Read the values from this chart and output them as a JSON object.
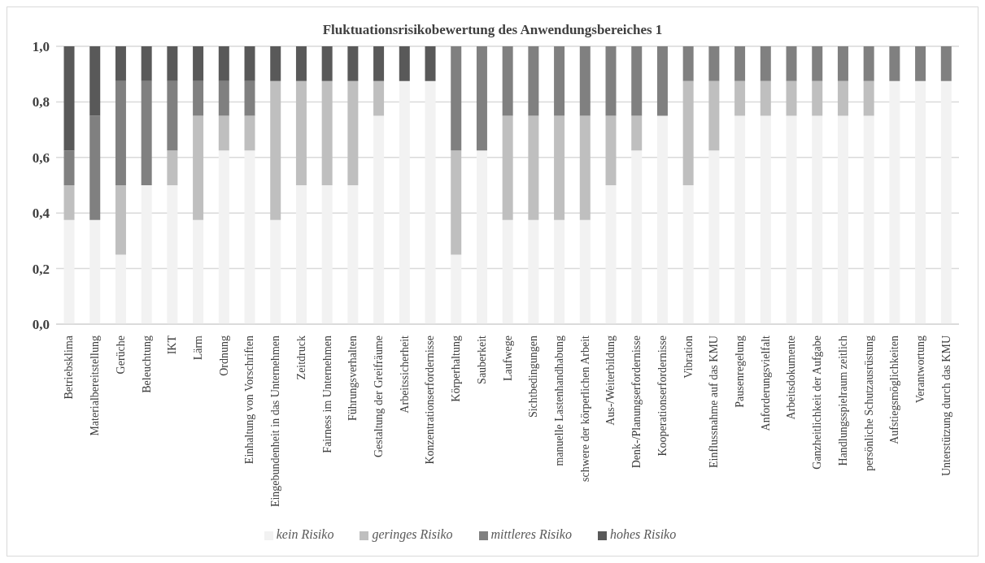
{
  "chart_data": {
    "type": "bar",
    "title": "Fluktuationsrisikobewertung des Anwendungsbereiches 1",
    "stacked": true,
    "grid": "y",
    "legend": "bottom",
    "ylim": [
      0,
      1
    ],
    "yticks": [
      {
        "value": 0,
        "label": "0,0"
      },
      {
        "value": 0.2,
        "label": "0,2"
      },
      {
        "value": 0.4,
        "label": "0,4"
      },
      {
        "value": 0.6,
        "label": "0,6"
      },
      {
        "value": 0.8,
        "label": "0,8"
      },
      {
        "value": 1,
        "label": "1,0"
      }
    ],
    "categories": [
      "Betriebsklima",
      "Materialbereitstellung",
      "Gerüche",
      "Beleuchtung",
      "IKT",
      "Lärm",
      "Ordnung",
      "Einhaltung von Vorschriften",
      "Eingebundenheit in das Unternehmen",
      "Zeitdruck",
      "Fairness im Unternehmen",
      "Führungsverhalten",
      "Gestaltung der Greifräume",
      "Arbeitssicherheit",
      "Konzentrationserfordernisse",
      "Körperhaltung",
      "Sauberkeit",
      "Laufwege",
      "Sichtbedingungen",
      "manuelle Lastenhandhabung",
      "schwere der körperlichen Arbeit",
      "Aus-/Weiterbildung",
      "Denk-/Planungserfordernisse",
      "Kooperationserfordernisse",
      "Vibration",
      "Einflussnahme auf das KMU",
      "Pausenregelung",
      "Anforderungsvielfalt",
      "Arbeitsdokumente",
      "Ganzheitlichkeit der Aufgabe",
      "Handlungsspielraum zeitlich",
      "persönliche Schutzausrüstung",
      "Aufstiegsmöglichkeiten",
      "Verantwortung",
      "Unterstützung durch das KMU"
    ],
    "series": [
      {
        "name": "kein Risiko",
        "color": "#f2f2f2",
        "values": [
          0.375,
          0.375,
          0.25,
          0.5,
          0.5,
          0.375,
          0.625,
          0.625,
          0.375,
          0.5,
          0.5,
          0.5,
          0.75,
          0.875,
          0.875,
          0.25,
          0.625,
          0.375,
          0.375,
          0.375,
          0.375,
          0.5,
          0.625,
          0.75,
          0.5,
          0.625,
          0.75,
          0.75,
          0.75,
          0.75,
          0.75,
          0.75,
          0.875,
          0.875,
          0.875
        ]
      },
      {
        "name": "geringes Risiko",
        "color": "#bfbfbf",
        "values": [
          0.125,
          0,
          0.25,
          0,
          0.125,
          0.375,
          0.125,
          0.125,
          0.5,
          0.375,
          0.375,
          0.375,
          0.125,
          0,
          0,
          0.375,
          0,
          0.375,
          0.375,
          0.375,
          0.375,
          0.25,
          0.125,
          0,
          0.375,
          0.25,
          0.125,
          0.125,
          0.125,
          0.125,
          0.125,
          0.125,
          0,
          0,
          0
        ]
      },
      {
        "name": "mittleres Risiko",
        "color": "#808080",
        "values": [
          0.125,
          0.375,
          0.375,
          0.375,
          0.25,
          0.125,
          0.125,
          0.125,
          0,
          0,
          0,
          0,
          0,
          0,
          0,
          0.375,
          0.375,
          0.25,
          0.25,
          0.25,
          0.25,
          0.25,
          0.25,
          0.25,
          0.125,
          0.125,
          0.125,
          0.125,
          0.125,
          0.125,
          0.125,
          0.125,
          0.125,
          0.125,
          0.125
        ]
      },
      {
        "name": "hohes Risiko",
        "color": "#595959",
        "values": [
          0.375,
          0.25,
          0.125,
          0.125,
          0.125,
          0.125,
          0.125,
          0.125,
          0.125,
          0.125,
          0.125,
          0.125,
          0.125,
          0.125,
          0.125,
          0,
          0,
          0,
          0,
          0,
          0,
          0,
          0,
          0,
          0,
          0,
          0,
          0,
          0,
          0,
          0,
          0,
          0,
          0,
          0
        ]
      }
    ]
  }
}
